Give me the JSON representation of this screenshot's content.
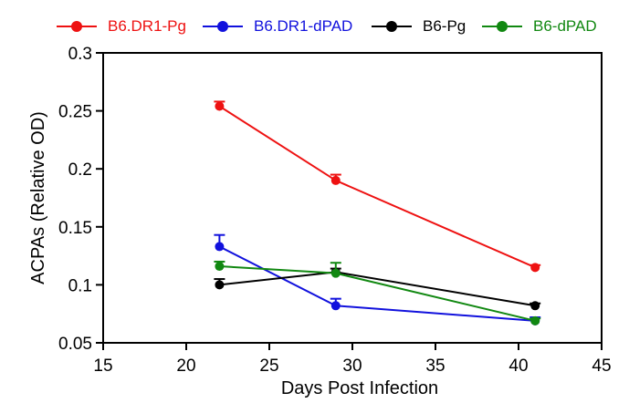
{
  "chart_data": {
    "type": "line",
    "title": "",
    "xlabel": "Days Post Infection",
    "ylabel": "ACPAs (Relative OD)",
    "xlim": [
      15,
      45
    ],
    "ylim": [
      0.05,
      0.3
    ],
    "xticks": [
      "15",
      "20",
      "25",
      "30",
      "35",
      "40",
      "45"
    ],
    "yticks": [
      "0.05",
      "0.1",
      "0.15",
      "0.2",
      "0.25",
      "0.3"
    ],
    "x": [
      22,
      29,
      41
    ],
    "legend_position": "top",
    "grid": false,
    "series": [
      {
        "name": "B6.DR1-Pg",
        "color": "#ee1111",
        "values": [
          0.254,
          0.19,
          0.115
        ],
        "errors": [
          0.004,
          0.005,
          0.002
        ]
      },
      {
        "name": "B6.DR1-dPAD",
        "color": "#1111dd",
        "values": [
          0.133,
          0.082,
          0.069
        ],
        "errors": [
          0.01,
          0.006,
          0.003
        ]
      },
      {
        "name": "B6-Pg",
        "color": "#000000",
        "values": [
          0.1,
          0.111,
          0.082
        ],
        "errors": [
          0.005,
          0.003,
          0.002
        ]
      },
      {
        "name": "B6-dPAD",
        "color": "#118811",
        "values": [
          0.116,
          0.11,
          0.069
        ],
        "errors": [
          0.004,
          0.009,
          0.002
        ]
      }
    ]
  }
}
